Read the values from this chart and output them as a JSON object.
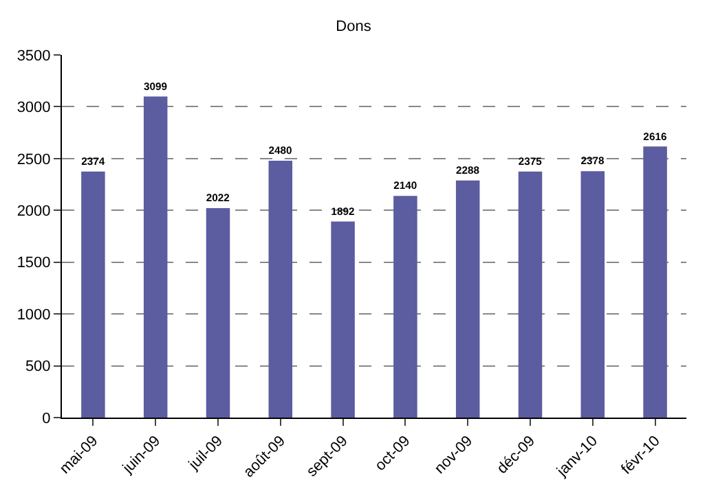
{
  "chart_data": {
    "type": "bar",
    "title": "Dons",
    "categories": [
      "mai-09",
      "juin-09",
      "juil-09",
      "août-09",
      "sept-09",
      "oct-09",
      "nov-09",
      "déc-09",
      "janv-10",
      "févr-10"
    ],
    "values": [
      2374,
      3099,
      2022,
      2480,
      1892,
      2140,
      2288,
      2375,
      2378,
      2616
    ],
    "color": "#5c5ca0",
    "ylim": [
      0,
      3500
    ],
    "yticks": [
      0,
      500,
      1000,
      1500,
      2000,
      2500,
      3000,
      3500
    ],
    "grid": "y",
    "data_labels": true,
    "legend": false
  }
}
